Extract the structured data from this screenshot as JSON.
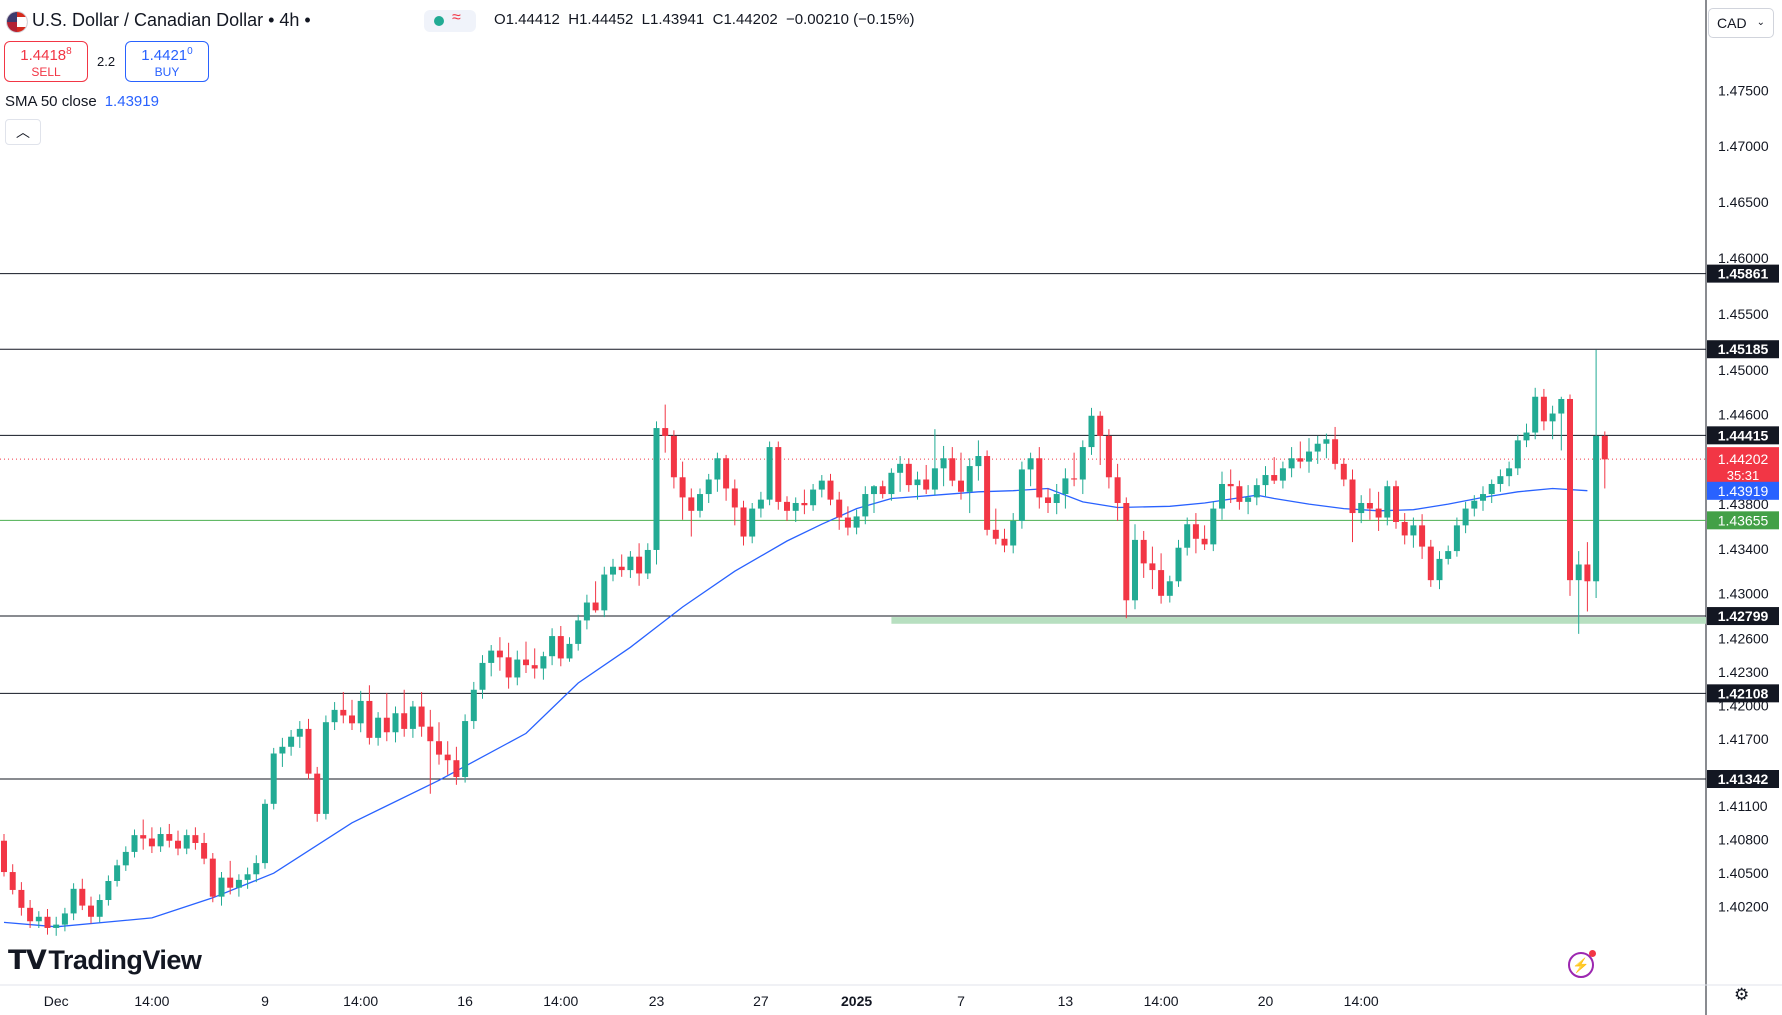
{
  "header": {
    "title": "U.S. Dollar / Canadian Dollar • 4h •",
    "status_symbol": "≈",
    "ohlc": {
      "o_label": "O",
      "o": "1.44412",
      "h_label": "H",
      "h": "1.44452",
      "l_label": "L",
      "l": "1.43941",
      "c_label": "C",
      "c": "1.44202",
      "change": "−0.00210 (−0.15%)"
    }
  },
  "trade": {
    "sell_price": "1.4418",
    "sell_price_sup": "8",
    "sell_label": "SELL",
    "spread": "2.2",
    "buy_price": "1.4421",
    "buy_price_sup": "0",
    "buy_label": "BUY"
  },
  "indicator": {
    "label": "SMA 50 close",
    "value": "1.43919"
  },
  "collapse_icon": "chevron-up-icon",
  "currency": "CAD",
  "colors": {
    "up": "#22ab94",
    "down": "#f23645",
    "sma": "#2962ff",
    "support_zone": "#b7dfc0",
    "hline": "#131722",
    "current_price_line": "#f23645",
    "green_line": "#4caf50"
  },
  "chart_data": {
    "type": "candlestick",
    "y_axis": {
      "min": 1.395,
      "max": 1.4795,
      "ticks": [
        "1.47500",
        "1.47000",
        "1.46500",
        "1.46000",
        "1.45500",
        "1.45000",
        "1.44600",
        "1.43800",
        "1.43400",
        "1.43000",
        "1.42600",
        "1.42300",
        "1.42000",
        "1.41700",
        "1.41100",
        "1.40800",
        "1.40500",
        "1.40200"
      ]
    },
    "x_axis": {
      "tick_labels": [
        "Dec",
        "14:00",
        "9",
        "14:00",
        "16",
        "14:00",
        "23",
        "27",
        "2025",
        "7",
        "13",
        "14:00",
        "20",
        "14:00"
      ],
      "tick_bars": [
        6,
        17,
        30,
        41,
        53,
        64,
        75,
        87,
        98,
        110,
        122,
        133,
        145,
        156
      ]
    },
    "horizontal_levels": [
      {
        "value": "1.45861",
        "y": 1.45861
      },
      {
        "value": "1.45185",
        "y": 1.45185
      },
      {
        "value": "1.44415",
        "y": 1.44415
      },
      {
        "value": "1.42799",
        "y": 1.42799
      },
      {
        "value": "1.42108",
        "y": 1.42108
      },
      {
        "value": "1.41342",
        "y": 1.41342
      }
    ],
    "green_level": {
      "value": "1.43655",
      "y": 1.43655
    },
    "current_price": {
      "value": "1.44202",
      "countdown": "35:31",
      "y": 1.44202
    },
    "sma_label": {
      "value": "1.43919",
      "y": 1.43919
    },
    "support_zone": {
      "from_bar": 102,
      "top": 1.4279,
      "bottom": 1.4273
    },
    "candles": [
      [
        1.4079,
        1.4085,
        1.4047,
        1.4051
      ],
      [
        1.4051,
        1.4058,
        1.4031,
        1.4035
      ],
      [
        1.4035,
        1.4042,
        1.4012,
        1.4019
      ],
      [
        1.4019,
        1.4026,
        1.4001,
        1.4007
      ],
      [
        1.4007,
        1.4016,
        1.4001,
        1.4011
      ],
      [
        1.4011,
        1.4018,
        1.3995,
        1.4001
      ],
      [
        1.4001,
        1.4011,
        1.3994,
        1.4004
      ],
      [
        1.4004,
        1.4019,
        1.3998,
        1.4014
      ],
      [
        1.4014,
        1.4041,
        1.4008,
        1.4036
      ],
      [
        1.4036,
        1.4045,
        1.4017,
        1.4021
      ],
      [
        1.4021,
        1.4029,
        1.4005,
        1.4011
      ],
      [
        1.4011,
        1.4031,
        1.4006,
        1.4026
      ],
      [
        1.4026,
        1.4048,
        1.4021,
        1.4043
      ],
      [
        1.4043,
        1.4062,
        1.4038,
        1.4057
      ],
      [
        1.4057,
        1.4074,
        1.4052,
        1.4069
      ],
      [
        1.4069,
        1.4089,
        1.4064,
        1.4084
      ],
      [
        1.4084,
        1.4098,
        1.4071,
        1.4081
      ],
      [
        1.4081,
        1.4091,
        1.4068,
        1.4074
      ],
      [
        1.4074,
        1.4091,
        1.4069,
        1.4085
      ],
      [
        1.4085,
        1.4094,
        1.4073,
        1.4079
      ],
      [
        1.4079,
        1.4088,
        1.4066,
        1.4072
      ],
      [
        1.4072,
        1.4089,
        1.4067,
        1.4084
      ],
      [
        1.4084,
        1.4091,
        1.4071,
        1.4077
      ],
      [
        1.4077,
        1.4086,
        1.4058,
        1.4063
      ],
      [
        1.4063,
        1.4068,
        1.4024,
        1.4029
      ],
      [
        1.4029,
        1.4051,
        1.4021,
        1.4046
      ],
      [
        1.4046,
        1.4061,
        1.4031,
        1.4037
      ],
      [
        1.4037,
        1.4049,
        1.4029,
        1.4044
      ],
      [
        1.4044,
        1.4055,
        1.4036,
        1.4049
      ],
      [
        1.4049,
        1.4066,
        1.4042,
        1.4059
      ],
      [
        1.4059,
        1.4116,
        1.4054,
        1.4112
      ],
      [
        1.4112,
        1.4162,
        1.4107,
        1.4157
      ],
      [
        1.4157,
        1.4171,
        1.4145,
        1.4163
      ],
      [
        1.4163,
        1.4178,
        1.4155,
        1.4172
      ],
      [
        1.4172,
        1.4186,
        1.4162,
        1.4179
      ],
      [
        1.4179,
        1.4188,
        1.4134,
        1.4139
      ],
      [
        1.4139,
        1.4145,
        1.4096,
        1.4103
      ],
      [
        1.4103,
        1.4191,
        1.4098,
        1.4185
      ],
      [
        1.4185,
        1.4203,
        1.4178,
        1.4196
      ],
      [
        1.4196,
        1.4212,
        1.4184,
        1.4191
      ],
      [
        1.4191,
        1.4205,
        1.4178,
        1.4184
      ],
      [
        1.4184,
        1.4213,
        1.4176,
        1.4204
      ],
      [
        1.4204,
        1.4218,
        1.4165,
        1.4171
      ],
      [
        1.4171,
        1.4194,
        1.4164,
        1.4189
      ],
      [
        1.4189,
        1.4211,
        1.4168,
        1.4176
      ],
      [
        1.4176,
        1.4199,
        1.4167,
        1.4193
      ],
      [
        1.4193,
        1.4214,
        1.4172,
        1.4179
      ],
      [
        1.4179,
        1.4204,
        1.4171,
        1.4199
      ],
      [
        1.4199,
        1.4212,
        1.4172,
        1.4181
      ],
      [
        1.4181,
        1.4196,
        1.4121,
        1.4168
      ],
      [
        1.4168,
        1.4185,
        1.4147,
        1.4156
      ],
      [
        1.4156,
        1.4168,
        1.4138,
        1.4151
      ],
      [
        1.4151,
        1.4163,
        1.4129,
        1.4136
      ],
      [
        1.4136,
        1.4192,
        1.4131,
        1.4186
      ],
      [
        1.4186,
        1.4221,
        1.4179,
        1.4214
      ],
      [
        1.4214,
        1.4245,
        1.4206,
        1.4238
      ],
      [
        1.4238,
        1.4254,
        1.4226,
        1.4249
      ],
      [
        1.4249,
        1.4261,
        1.4231,
        1.4243
      ],
      [
        1.4243,
        1.4256,
        1.4215,
        1.4225
      ],
      [
        1.4225,
        1.4249,
        1.4218,
        1.4241
      ],
      [
        1.4241,
        1.4257,
        1.4229,
        1.4236
      ],
      [
        1.4236,
        1.4251,
        1.4224,
        1.4233
      ],
      [
        1.4233,
        1.4248,
        1.4223,
        1.4244
      ],
      [
        1.4244,
        1.4269,
        1.4236,
        1.4262
      ],
      [
        1.4262,
        1.4271,
        1.4235,
        1.4242
      ],
      [
        1.4242,
        1.4261,
        1.4239,
        1.4255
      ],
      [
        1.4255,
        1.4281,
        1.4249,
        1.4276
      ],
      [
        1.4276,
        1.4299,
        1.4268,
        1.4292
      ],
      [
        1.4292,
        1.4311,
        1.4283,
        1.4285
      ],
      [
        1.4285,
        1.4324,
        1.4279,
        1.4317
      ],
      [
        1.4317,
        1.4331,
        1.4311,
        1.4324
      ],
      [
        1.4324,
        1.4335,
        1.4315,
        1.4321
      ],
      [
        1.4321,
        1.4338,
        1.4314,
        1.4333
      ],
      [
        1.4333,
        1.4345,
        1.4307,
        1.4318
      ],
      [
        1.4318,
        1.4345,
        1.4313,
        1.4339
      ],
      [
        1.4339,
        1.4454,
        1.4326,
        1.4448
      ],
      [
        1.4448,
        1.4469,
        1.4426,
        1.4441
      ],
      [
        1.4441,
        1.4446,
        1.4394,
        1.4404
      ],
      [
        1.4404,
        1.4418,
        1.4366,
        1.4386
      ],
      [
        1.4386,
        1.4394,
        1.4351,
        1.4374
      ],
      [
        1.4374,
        1.4394,
        1.4368,
        1.4389
      ],
      [
        1.4389,
        1.4407,
        1.4381,
        1.4402
      ],
      [
        1.4402,
        1.4426,
        1.4391,
        1.4421
      ],
      [
        1.4421,
        1.4424,
        1.4383,
        1.4394
      ],
      [
        1.4394,
        1.4402,
        1.4361,
        1.4377
      ],
      [
        1.4377,
        1.4383,
        1.4343,
        1.4351
      ],
      [
        1.4351,
        1.4381,
        1.4345,
        1.4376
      ],
      [
        1.4376,
        1.4391,
        1.4368,
        1.4384
      ],
      [
        1.4384,
        1.4436,
        1.4379,
        1.4431
      ],
      [
        1.4431,
        1.4436,
        1.4375,
        1.4382
      ],
      [
        1.4382,
        1.4387,
        1.4365,
        1.4374
      ],
      [
        1.4374,
        1.4386,
        1.4364,
        1.4381
      ],
      [
        1.4381,
        1.4393,
        1.4371,
        1.4379
      ],
      [
        1.4379,
        1.4398,
        1.4374,
        1.4393
      ],
      [
        1.4393,
        1.4406,
        1.4386,
        1.4401
      ],
      [
        1.4401,
        1.4407,
        1.4379,
        1.4384
      ],
      [
        1.4384,
        1.4391,
        1.4357,
        1.4368
      ],
      [
        1.4368,
        1.4378,
        1.4352,
        1.4359
      ],
      [
        1.4359,
        1.4375,
        1.4353,
        1.4369
      ],
      [
        1.4369,
        1.4396,
        1.4362,
        1.4389
      ],
      [
        1.4389,
        1.4397,
        1.4372,
        1.4396
      ],
      [
        1.4396,
        1.4401,
        1.4385,
        1.4389
      ],
      [
        1.4389,
        1.4412,
        1.4383,
        1.4408
      ],
      [
        1.4408,
        1.4423,
        1.4391,
        1.4416
      ],
      [
        1.4416,
        1.4421,
        1.4391,
        1.4397
      ],
      [
        1.4397,
        1.4409,
        1.4384,
        1.4402
      ],
      [
        1.4402,
        1.4415,
        1.4389,
        1.4393
      ],
      [
        1.4393,
        1.4447,
        1.4388,
        1.4412
      ],
      [
        1.4412,
        1.4432,
        1.4396,
        1.4421
      ],
      [
        1.4421,
        1.4431,
        1.4396,
        1.4401
      ],
      [
        1.4401,
        1.4426,
        1.4384,
        1.4391
      ],
      [
        1.4391,
        1.4421,
        1.4372,
        1.4414
      ],
      [
        1.4414,
        1.4437,
        1.4401,
        1.4423
      ],
      [
        1.4423,
        1.4428,
        1.4352,
        1.4357
      ],
      [
        1.4357,
        1.4376,
        1.4344,
        1.4349
      ],
      [
        1.4349,
        1.4358,
        1.4337,
        1.4343
      ],
      [
        1.4343,
        1.4372,
        1.4336,
        1.4365
      ],
      [
        1.4365,
        1.4418,
        1.4358,
        1.4411
      ],
      [
        1.4411,
        1.4426,
        1.4396,
        1.4421
      ],
      [
        1.4421,
        1.4431,
        1.4376,
        1.4386
      ],
      [
        1.4386,
        1.4394,
        1.4372,
        1.4381
      ],
      [
        1.4381,
        1.4398,
        1.4371,
        1.4389
      ],
      [
        1.4389,
        1.4412,
        1.4376,
        1.4403
      ],
      [
        1.4403,
        1.4426,
        1.4396,
        1.4402
      ],
      [
        1.4402,
        1.4437,
        1.4389,
        1.4431
      ],
      [
        1.4431,
        1.4466,
        1.4424,
        1.4459
      ],
      [
        1.4459,
        1.4463,
        1.4415,
        1.4441
      ],
      [
        1.4441,
        1.4447,
        1.4394,
        1.4404
      ],
      [
        1.4404,
        1.4416,
        1.4365,
        1.4381
      ],
      [
        1.4381,
        1.4386,
        1.4278,
        1.4294
      ],
      [
        1.4294,
        1.4362,
        1.4286,
        1.4348
      ],
      [
        1.4348,
        1.4356,
        1.4314,
        1.4327
      ],
      [
        1.4327,
        1.4342,
        1.4304,
        1.4321
      ],
      [
        1.4321,
        1.4336,
        1.4291,
        1.4298
      ],
      [
        1.4298,
        1.4316,
        1.4292,
        1.4311
      ],
      [
        1.4311,
        1.4348,
        1.4306,
        1.4341
      ],
      [
        1.4341,
        1.4368,
        1.4334,
        1.4362
      ],
      [
        1.4362,
        1.4372,
        1.4336,
        1.4349
      ],
      [
        1.4349,
        1.4361,
        1.4339,
        1.4344
      ],
      [
        1.4344,
        1.4382,
        1.4338,
        1.4376
      ],
      [
        1.4376,
        1.4409,
        1.4366,
        1.4398
      ],
      [
        1.4398,
        1.4411,
        1.4381,
        1.4396
      ],
      [
        1.4396,
        1.4401,
        1.4375,
        1.4382
      ],
      [
        1.4382,
        1.4397,
        1.4371,
        1.4386
      ],
      [
        1.4386,
        1.4403,
        1.4379,
        1.4397
      ],
      [
        1.4397,
        1.4414,
        1.4387,
        1.4406
      ],
      [
        1.4406,
        1.4422,
        1.4398,
        1.4401
      ],
      [
        1.4401,
        1.4418,
        1.4394,
        1.4412
      ],
      [
        1.4412,
        1.4431,
        1.4404,
        1.4421
      ],
      [
        1.4421,
        1.4436,
        1.4412,
        1.4418
      ],
      [
        1.4418,
        1.4439,
        1.4408,
        1.4427
      ],
      [
        1.4427,
        1.4441,
        1.4416,
        1.4434
      ],
      [
        1.4434,
        1.4443,
        1.4421,
        1.4438
      ],
      [
        1.4438,
        1.4449,
        1.4411,
        1.4416
      ],
      [
        1.4416,
        1.4421,
        1.4396,
        1.4402
      ],
      [
        1.4402,
        1.4411,
        1.4346,
        1.4372
      ],
      [
        1.4372,
        1.4388,
        1.4363,
        1.4381
      ],
      [
        1.4381,
        1.4394,
        1.4366,
        1.4376
      ],
      [
        1.4376,
        1.4391,
        1.4356,
        1.4368
      ],
      [
        1.4368,
        1.4401,
        1.4361,
        1.4396
      ],
      [
        1.4396,
        1.4401,
        1.4358,
        1.4364
      ],
      [
        1.4364,
        1.4372,
        1.4344,
        1.4352
      ],
      [
        1.4352,
        1.4368,
        1.4341,
        1.4361
      ],
      [
        1.4361,
        1.4371,
        1.4331,
        1.4342
      ],
      [
        1.4342,
        1.4348,
        1.4306,
        1.4312
      ],
      [
        1.4312,
        1.4338,
        1.4304,
        1.4331
      ],
      [
        1.4331,
        1.4343,
        1.4326,
        1.4338
      ],
      [
        1.4338,
        1.4368,
        1.4333,
        1.4361
      ],
      [
        1.4361,
        1.4382,
        1.4354,
        1.4376
      ],
      [
        1.4376,
        1.4388,
        1.4369,
        1.4383
      ],
      [
        1.4383,
        1.4396,
        1.4374,
        1.4389
      ],
      [
        1.4389,
        1.4402,
        1.4381,
        1.4398
      ],
      [
        1.4398,
        1.4411,
        1.4391,
        1.4405
      ],
      [
        1.4405,
        1.4418,
        1.4396,
        1.4412
      ],
      [
        1.4412,
        1.4442,
        1.4406,
        1.4437
      ],
      [
        1.4437,
        1.4452,
        1.4431,
        1.4444
      ],
      [
        1.4444,
        1.4484,
        1.4438,
        1.4476
      ],
      [
        1.4476,
        1.4483,
        1.4446,
        1.4454
      ],
      [
        1.4454,
        1.4468,
        1.4438,
        1.4461
      ],
      [
        1.4461,
        1.4476,
        1.4428,
        1.4474
      ],
      [
        1.4474,
        1.4478,
        1.4298,
        1.4312
      ],
      [
        1.4312,
        1.4338,
        1.4264,
        1.4326
      ],
      [
        1.4326,
        1.4346,
        1.4284,
        1.4311
      ],
      [
        1.4311,
        1.4518,
        1.4296,
        1.4441
      ],
      [
        1.4441,
        1.4445,
        1.4394,
        1.442
      ]
    ],
    "sma": [
      [
        0,
        1.4006
      ],
      [
        6,
        1.4002
      ],
      [
        17,
        1.401
      ],
      [
        24,
        1.4028
      ],
      [
        31,
        1.405
      ],
      [
        40,
        1.4095
      ],
      [
        50,
        1.4133
      ],
      [
        60,
        1.4175
      ],
      [
        66,
        1.422
      ],
      [
        72,
        1.4252
      ],
      [
        78,
        1.4288
      ],
      [
        84,
        1.432
      ],
      [
        90,
        1.4347
      ],
      [
        94,
        1.4362
      ],
      [
        98,
        1.4376
      ],
      [
        102,
        1.4385
      ],
      [
        107,
        1.4388
      ],
      [
        112,
        1.4391
      ],
      [
        116,
        1.4392
      ],
      [
        120,
        1.4394
      ],
      [
        124,
        1.4382
      ],
      [
        128,
        1.4377
      ],
      [
        134,
        1.4378
      ],
      [
        138,
        1.4381
      ],
      [
        144,
        1.4388
      ],
      [
        146,
        1.4385
      ],
      [
        150,
        1.438
      ],
      [
        154,
        1.4376
      ],
      [
        158,
        1.4374
      ],
      [
        162,
        1.4375
      ],
      [
        166,
        1.438
      ],
      [
        170,
        1.4386
      ],
      [
        174,
        1.4391
      ],
      [
        178,
        1.4394
      ],
      [
        182,
        1.4392
      ]
    ]
  }
}
